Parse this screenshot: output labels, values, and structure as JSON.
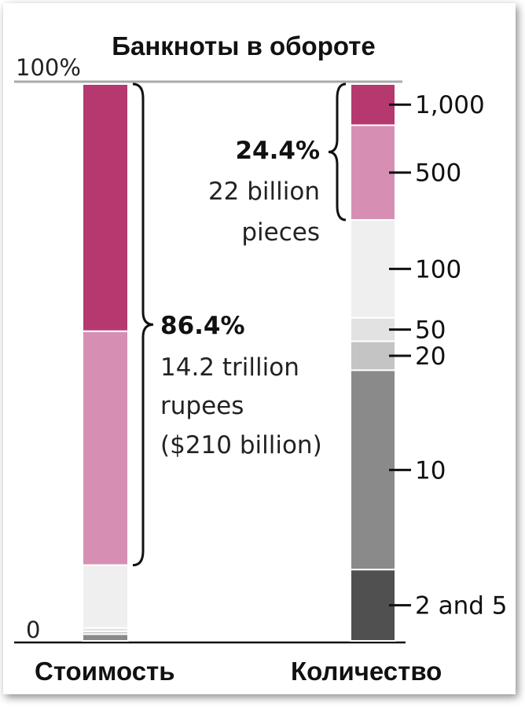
{
  "chart_data": {
    "type": "bar",
    "subtype": "stacked-100",
    "title": "Банкноты в обороте",
    "y_tick_labels": [
      "100%",
      "0"
    ],
    "ylim": [
      0,
      100
    ],
    "categories": [
      "Стоимость",
      "Количество"
    ],
    "series": [
      {
        "label": "1,000",
        "color": "#b5396f",
        "values": [
          44.4,
          7.4
        ]
      },
      {
        "label": "500",
        "color": "#d68fb2",
        "values": [
          42.0,
          17.0
        ]
      },
      {
        "label": "100",
        "color": "#efefef",
        "values": [
          11.3,
          17.6
        ]
      },
      {
        "label": "50",
        "color": "#e2e2e2",
        "values": [
          0.6,
          4.2
        ]
      },
      {
        "label": "20",
        "color": "#c4c4c4",
        "values": [
          0.5,
          5.2
        ]
      },
      {
        "label": "10",
        "color": "#8a8a8a",
        "values": [
          1.2,
          35.8
        ]
      },
      {
        "label": "2 and 5",
        "color": "#505050",
        "values": [
          0.0,
          12.8
        ]
      }
    ],
    "annotations": {
      "value": {
        "pct": "86.4%",
        "lines": [
          "14.2 trillion",
          "rupees",
          "($210 billion)"
        ]
      },
      "count": {
        "pct": "24.4%",
        "lines": [
          "22 billion",
          "pieces"
        ]
      }
    },
    "grid": false,
    "legend": "none"
  }
}
